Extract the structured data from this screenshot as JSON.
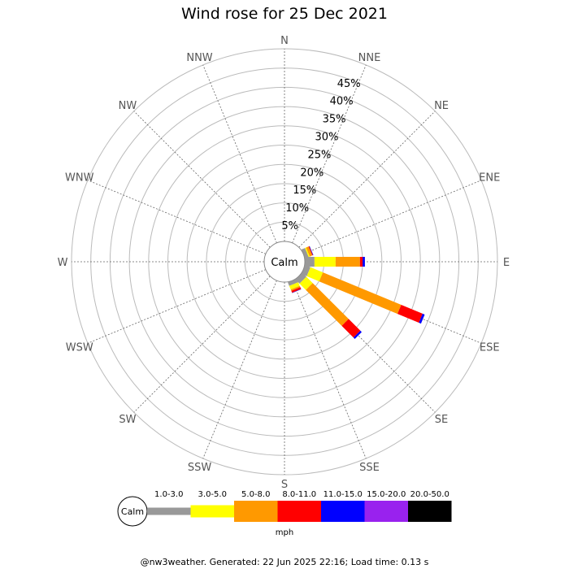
{
  "chart_data": {
    "type": "wind-rose",
    "title": "Wind rose for 25 Dec 2021",
    "radial_ticks": [
      "5%",
      "10%",
      "15%",
      "20%",
      "25%",
      "30%",
      "35%",
      "40%",
      "45%"
    ],
    "radial_max_percent": 50,
    "directions": [
      "N",
      "NNE",
      "NE",
      "ENE",
      "E",
      "ESE",
      "SE",
      "SSE",
      "S",
      "SSW",
      "SW",
      "WSW",
      "W",
      "WNW",
      "NW",
      "NNW"
    ],
    "center_label": "Calm",
    "speed_bins": [
      {
        "label": "1.0-3.0",
        "color": "#999999"
      },
      {
        "label": "3.0-5.0",
        "color": "#ffff00"
      },
      {
        "label": "5.0-8.0",
        "color": "#ff9900"
      },
      {
        "label": "8.0-11.0",
        "color": "#ff0000"
      },
      {
        "label": "11.0-15.0",
        "color": "#0000ff"
      },
      {
        "label": "15.0-20.0",
        "color": "#9922ee"
      },
      {
        "label": "20.0-50.0",
        "color": "#000000"
      }
    ],
    "speed_unit": "mph",
    "series": [
      {
        "direction": "ENE",
        "cumulative_percent": [
          1.0,
          1.3,
          2.0,
          2.2,
          2.3,
          2.3,
          2.3
        ]
      },
      {
        "direction": "E",
        "cumulative_percent": [
          2.5,
          8.0,
          14.3,
          15.0,
          15.6,
          15.6,
          15.6
        ]
      },
      {
        "direction": "ESE",
        "cumulative_percent": [
          1.5,
          5.0,
          27.0,
          33.0,
          33.6,
          33.6,
          33.6
        ]
      },
      {
        "direction": "SE",
        "cumulative_percent": [
          1.5,
          3.8,
          17.0,
          21.3,
          21.8,
          21.8,
          21.8
        ]
      },
      {
        "direction": "SSE",
        "cumulative_percent": [
          1.0,
          2.0,
          2.4,
          2.9,
          3.0,
          3.0,
          3.0
        ]
      }
    ]
  },
  "footer": "@nw3weather.  Generated: 22 Jun 2025 22:16; Load time: 0.13 s"
}
